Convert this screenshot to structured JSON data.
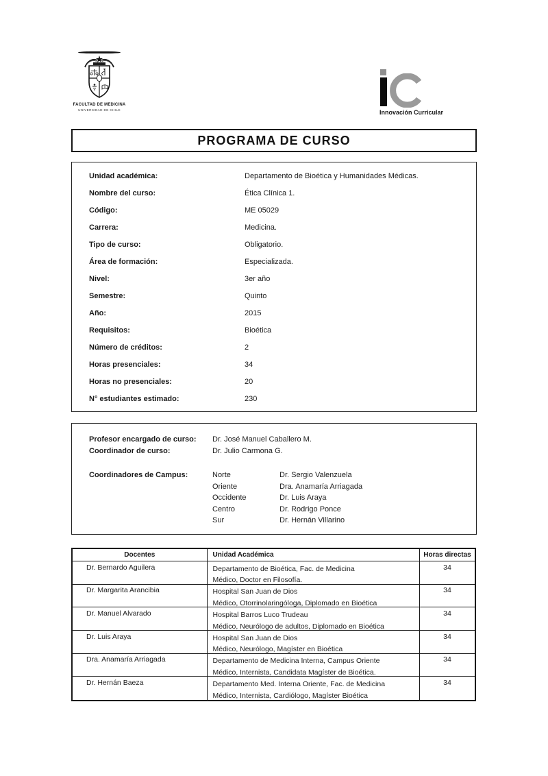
{
  "page": {
    "title": "PROGRAMA DE CURSO"
  },
  "letterhead": {
    "crest_icon": "university-crest-icon",
    "faculty_line1": "FACULTAD DE MEDICINA",
    "faculty_line2": "UNIVERSIDAD DE CHILE",
    "ic_logo": {
      "icon": "innovacion-curricular-logo-icon",
      "letter_i": "i",
      "letter_c": "C",
      "caption": "Innovación Curricular",
      "i_color": "#0d0d0d",
      "c_color": "#9a9a9a",
      "dot_color": "#8f8f8f"
    }
  },
  "course_info": {
    "rows": [
      {
        "label": "Unidad académica:",
        "value": "Departamento de Bioética y Humanidades Médicas."
      },
      {
        "label": "Nombre del curso:",
        "value": "Ética Clínica 1."
      },
      {
        "label": "Código:",
        "value": "ME 05029"
      },
      {
        "label": "Carrera:",
        "value": "Medicina."
      },
      {
        "label": "Tipo de curso:",
        "value": "Obligatorio."
      },
      {
        "label": "Área de formación:",
        "value": "Especializada."
      },
      {
        "label": "Nivel:",
        "value": "3er año"
      },
      {
        "label": "Semestre:",
        "value": "Quinto"
      },
      {
        "label": "Año:",
        "value": "2015"
      },
      {
        "label": "Requisitos:",
        "value": "Bioética"
      },
      {
        "label": "Número de créditos:",
        "value": "2"
      },
      {
        "label": "Horas presenciales:",
        "value": "34"
      },
      {
        "label": "Horas no presenciales:",
        "value": "20"
      },
      {
        "label": "N° estudiantes estimado:",
        "value": "230"
      }
    ]
  },
  "staff": {
    "rows": [
      {
        "label": "Profesor encargado de curso:",
        "value": "Dr. José Manuel Caballero M."
      },
      {
        "label": "Coordinador de curso:",
        "value": "Dr. Julio Carmona G."
      }
    ],
    "campus_label": "Coordinadores de Campus:",
    "campus_rows": [
      {
        "campus": "Norte",
        "name": "Dr. Sergio Valenzuela"
      },
      {
        "campus": "Oriente",
        "name": "Dra. Anamaría Arriagada"
      },
      {
        "campus": "Occidente",
        "name": "Dr. Luis Araya"
      },
      {
        "campus": "Centro",
        "name": "Dr. Rodrigo Ponce"
      },
      {
        "campus": "Sur",
        "name": "Dr. Hernán Villarino"
      }
    ]
  },
  "docentes_table": {
    "headers": [
      "Docentes",
      "Unidad Académica",
      "Horas directas"
    ],
    "rows": [
      {
        "name": "Dr. Bernardo Aguilera",
        "unit_line1": "Departamento de Bioética, Fac. de Medicina",
        "unit_line2": "Médico, Doctor en Filosofía.",
        "hours": "34"
      },
      {
        "name": "Dr. Margarita Arancibia",
        "unit_line1": "Hospital San Juan de Dios",
        "unit_line2": "Médico, Otorrinolaringóloga, Diplomado en Bioética",
        "hours": "34"
      },
      {
        "name": "Dr. Manuel Alvarado",
        "unit_line1": "Hospital Barros Luco Trudeau",
        "unit_line2": "Médico, Neurólogo de adultos, Diplomado en Bioética",
        "hours": "34"
      },
      {
        "name": "Dr. Luis Araya",
        "unit_line1": "Hospital San Juan de Dios",
        "unit_line2": "Médico, Neurólogo, Magíster en Bioética",
        "hours": "34"
      },
      {
        "name": "Dra. Anamaría Arriagada",
        "unit_line1": "Departamento de Medicina Interna, Campus Oriente",
        "unit_line2": "Médico, Internista, Candidata Magíster de Bioética.",
        "hours": "34"
      },
      {
        "name": "Dr. Hernán Baeza",
        "unit_line1": "Departamento Med. Interna Oriente, Fac. de Medicina",
        "unit_line2": "Médico, Internista, Cardiólogo, Magíster Bioética",
        "hours": "34"
      }
    ]
  }
}
